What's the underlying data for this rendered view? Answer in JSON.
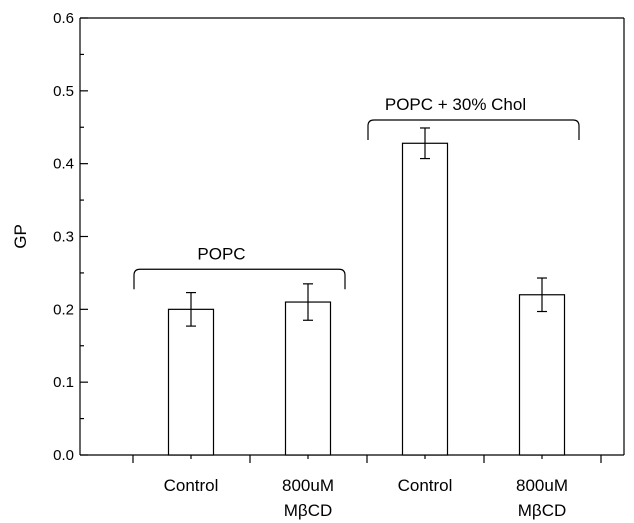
{
  "chart_data": {
    "type": "bar",
    "title": "",
    "xlabel": "",
    "ylabel": "GP",
    "ylim": [
      0,
      0.6
    ],
    "yticks": [
      "0.0",
      "0.1",
      "0.2",
      "0.3",
      "0.4",
      "0.5",
      "0.6"
    ],
    "grid": false,
    "categories": [
      {
        "line1": "Control",
        "line2": ""
      },
      {
        "line1": "800uM",
        "line2": "MβCD"
      },
      {
        "line1": "Control",
        "line2": ""
      },
      {
        "line1": "800uM",
        "line2": "MβCD"
      }
    ],
    "values": [
      0.2,
      0.21,
      0.428,
      0.22
    ],
    "errors": [
      0.023,
      0.025,
      0.021,
      0.023
    ],
    "groups": [
      {
        "label": "POPC",
        "bar_indices": [
          0,
          1
        ],
        "bracket_value": 0.255
      },
      {
        "label": "POPC + 30% Chol",
        "bar_indices": [
          2,
          3
        ],
        "bracket_value": 0.46
      }
    ],
    "colors": {
      "bar_fill": "#ffffff",
      "stroke": "#000000"
    }
  }
}
